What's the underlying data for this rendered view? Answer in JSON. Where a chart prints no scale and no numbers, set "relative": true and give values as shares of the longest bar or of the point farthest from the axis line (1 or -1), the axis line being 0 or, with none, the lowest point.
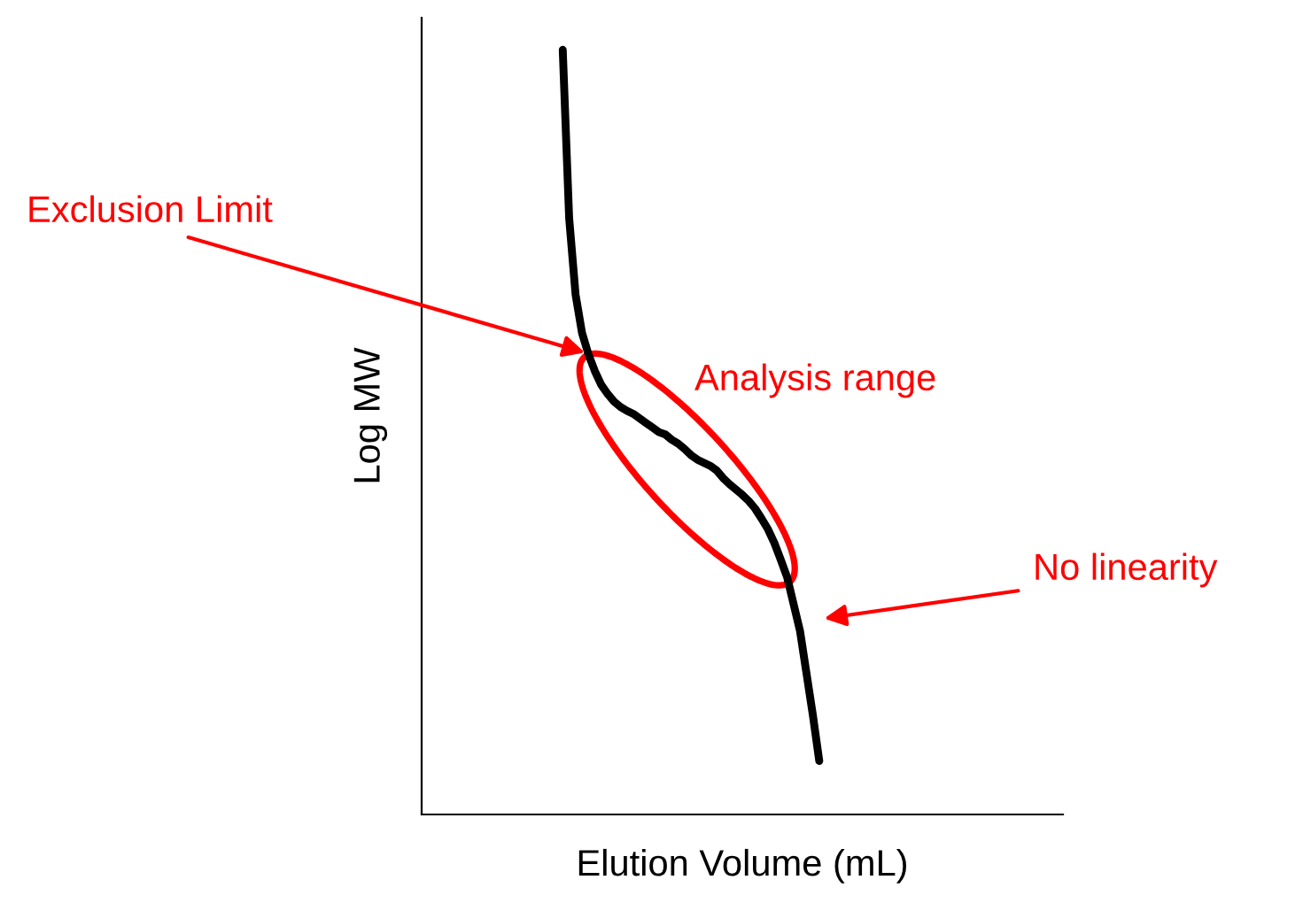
{
  "chart_data": {
    "type": "line",
    "relative": true,
    "xlabel": "Elution Volume (mL)",
    "ylabel": "Log MW",
    "categories": [
      null,
      null,
      null,
      null,
      null,
      null,
      null,
      null,
      null,
      null,
      null,
      null,
      null,
      null,
      null,
      null,
      null,
      null,
      null,
      null,
      null,
      null,
      null,
      null,
      null,
      null,
      null,
      null,
      null,
      null,
      null,
      null,
      null,
      null,
      null,
      null,
      null,
      null,
      null,
      null,
      null,
      null,
      null,
      null,
      null,
      null,
      null,
      null,
      null,
      null,
      null,
      null,
      null,
      null,
      null,
      null,
      null,
      null,
      null,
      null,
      null,
      null,
      null,
      null,
      null,
      null,
      null,
      null,
      null,
      null,
      null,
      null,
      null,
      null,
      null,
      null,
      null,
      null,
      null,
      null,
      null,
      null,
      null,
      null,
      null,
      null,
      null,
      null,
      null,
      null,
      null,
      null,
      null,
      null,
      null,
      null,
      null,
      null,
      null,
      null,
      null
    ],
    "series": [
      {
        "color": "#000000",
        "values": [
          null,
          null,
          null,
          null,
          null,
          null,
          null,
          null,
          null,
          null,
          null,
          null,
          null,
          null,
          null,
          null,
          null,
          null,
          null,
          null,
          null,
          null,
          1.0,
          0.78,
          0.68,
          0.63,
          0.602,
          0.58,
          0.562,
          0.55,
          0.54,
          0.533,
          0.528,
          0.524,
          0.518,
          0.512,
          0.506,
          0.5,
          0.497,
          0.49,
          0.485,
          0.478,
          0.47,
          0.464,
          0.46,
          0.456,
          0.45,
          0.44,
          0.432,
          0.425,
          0.418,
          0.41,
          0.4,
          0.387,
          0.373,
          0.355,
          0.333,
          0.31,
          0.275,
          0.24,
          0.185,
          0.13,
          0.07,
          null,
          null,
          null,
          null,
          null,
          null,
          null,
          null,
          null,
          null,
          null,
          null,
          null,
          null,
          null,
          null,
          null,
          null,
          null,
          null,
          null,
          null,
          null,
          null,
          null,
          null,
          null,
          null,
          null,
          null,
          null,
          null,
          null,
          null,
          null,
          null,
          null,
          null
        ]
      }
    ],
    "annotations": [
      "Exclusion Limit",
      "Analysis range",
      "No linearity"
    ]
  }
}
